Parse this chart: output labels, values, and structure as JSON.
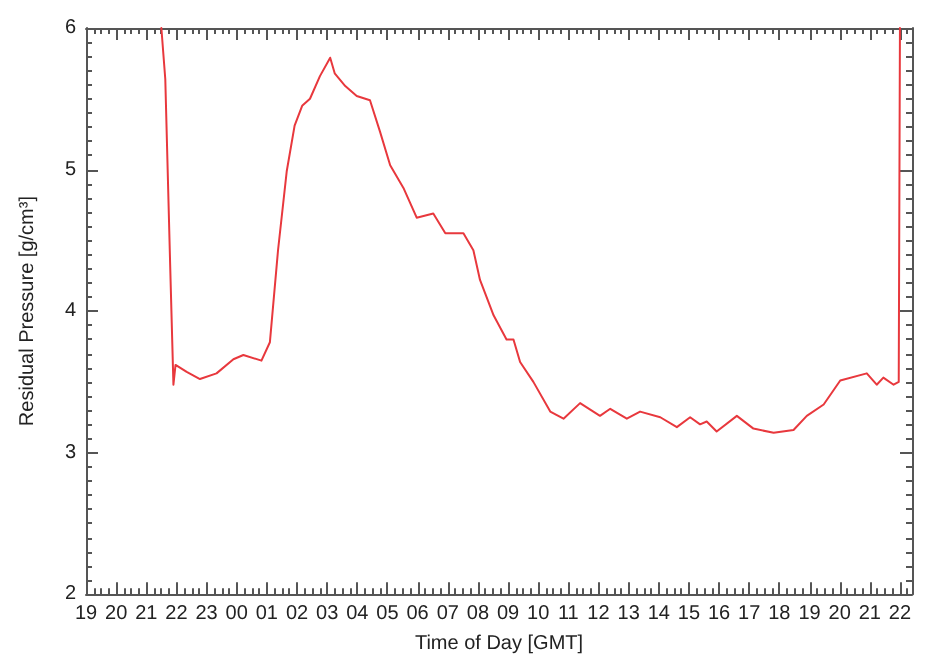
{
  "chart_data": {
    "type": "line",
    "xlabel": "Time of Day [GMT]",
    "ylabel": "Residual Pressure [g/cm³]",
    "xlim": [
      19,
      46.4
    ],
    "ylim": [
      2,
      6
    ],
    "xticks": [
      {
        "value": 19,
        "label": "19"
      },
      {
        "value": 20,
        "label": "20"
      },
      {
        "value": 21,
        "label": "21"
      },
      {
        "value": 22,
        "label": "22"
      },
      {
        "value": 23,
        "label": "23"
      },
      {
        "value": 24,
        "label": "00"
      },
      {
        "value": 25,
        "label": "01"
      },
      {
        "value": 26,
        "label": "02"
      },
      {
        "value": 27,
        "label": "03"
      },
      {
        "value": 28,
        "label": "04"
      },
      {
        "value": 29,
        "label": "05"
      },
      {
        "value": 30,
        "label": "06"
      },
      {
        "value": 31,
        "label": "07"
      },
      {
        "value": 32,
        "label": "08"
      },
      {
        "value": 33,
        "label": "09"
      },
      {
        "value": 34,
        "label": "10"
      },
      {
        "value": 35,
        "label": "11"
      },
      {
        "value": 36,
        "label": "12"
      },
      {
        "value": 37,
        "label": "13"
      },
      {
        "value": 38,
        "label": "14"
      },
      {
        "value": 39,
        "label": "15"
      },
      {
        "value": 40,
        "label": "16"
      },
      {
        "value": 41,
        "label": "17"
      },
      {
        "value": 42,
        "label": "18"
      },
      {
        "value": 43,
        "label": "19"
      },
      {
        "value": 44,
        "label": "20"
      },
      {
        "value": 45,
        "label": "21"
      },
      {
        "value": 46,
        "label": "22"
      }
    ],
    "yticks": [
      2,
      3,
      4,
      5,
      6
    ],
    "grid": false,
    "marker": "none",
    "line_style": "solid",
    "series": [
      {
        "color": "#e8383d",
        "x": [
          21.5,
          21.63,
          21.79,
          21.9,
          21.97,
          22.34,
          22.78,
          23.33,
          23.89,
          24.22,
          24.82,
          25.1,
          25.37,
          25.66,
          25.92,
          26.17,
          26.43,
          26.76,
          27.1,
          27.25,
          27.6,
          27.98,
          28.42,
          28.75,
          29.09,
          29.53,
          29.97,
          30.52,
          30.92,
          31.52,
          31.85,
          32.07,
          32.52,
          32.95,
          33.18,
          33.4,
          33.84,
          34.4,
          34.84,
          35.39,
          36.05,
          36.39,
          36.94,
          37.38,
          38.05,
          38.6,
          39.04,
          39.37,
          39.59,
          39.92,
          40.59,
          41.14,
          41.81,
          42.47,
          42.91,
          43.47,
          44.02,
          44.9,
          45.23,
          45.45,
          45.79,
          45.96,
          46.0
        ],
        "values": [
          6.0,
          5.64,
          4.34,
          3.48,
          3.62,
          3.57,
          3.52,
          3.56,
          3.66,
          3.69,
          3.65,
          3.78,
          4.43,
          4.99,
          5.31,
          5.45,
          5.5,
          5.66,
          5.79,
          5.68,
          5.59,
          5.52,
          5.49,
          5.27,
          5.03,
          4.87,
          4.66,
          4.69,
          4.55,
          4.55,
          4.43,
          4.22,
          3.97,
          3.8,
          3.8,
          3.64,
          3.5,
          3.29,
          3.24,
          3.35,
          3.26,
          3.31,
          3.24,
          3.29,
          3.25,
          3.18,
          3.25,
          3.2,
          3.22,
          3.15,
          3.26,
          3.17,
          3.14,
          3.16,
          3.26,
          3.34,
          3.51,
          3.56,
          3.48,
          3.53,
          3.48,
          3.5,
          6.0
        ]
      }
    ]
  }
}
